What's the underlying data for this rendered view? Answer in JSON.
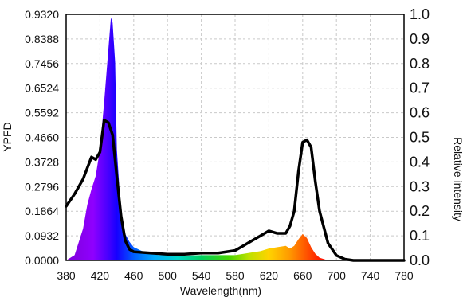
{
  "chart_data": {
    "type": "area",
    "xlabel": "Wavelength(nm)",
    "ylabel_left": "YPFD",
    "ylabel_right": "Relative intensity",
    "xlim": [
      380,
      780
    ],
    "ylim_left": [
      0,
      0.932
    ],
    "ylim_right": [
      0,
      1.0
    ],
    "grid": true,
    "x_ticks": [
      "380",
      "420",
      "460",
      "500",
      "540",
      "580",
      "620",
      "660",
      "700",
      "740",
      "780"
    ],
    "y_left_ticks": [
      "0.0000",
      "0.0932",
      "0.1864",
      "0.2796",
      "0.3728",
      "0.4660",
      "0.5592",
      "0.6524",
      "0.7456",
      "0.8388",
      "0.9320"
    ],
    "y_right_ticks": [
      "0.0",
      "0.1",
      "0.2",
      "0.3",
      "0.4",
      "0.5",
      "0.6",
      "0.7",
      "0.8",
      "0.9",
      "1.0"
    ],
    "series": [
      {
        "name": "",
        "axis": "left",
        "style": "filled-spectrum",
        "x": [
          380,
          390,
          400,
          405,
          410,
          415,
          420,
          425,
          430,
          433,
          435,
          438,
          440,
          445,
          450,
          455,
          460,
          470,
          480,
          490,
          500,
          520,
          540,
          560,
          580,
          590,
          600,
          610,
          620,
          630,
          640,
          645,
          650,
          655,
          660,
          665,
          670,
          675,
          680,
          690,
          700,
          720,
          740,
          760,
          780
        ],
        "y": [
          0.0,
          0.02,
          0.12,
          0.21,
          0.27,
          0.32,
          0.42,
          0.6,
          0.8,
          0.92,
          0.9,
          0.75,
          0.42,
          0.18,
          0.1,
          0.07,
          0.05,
          0.035,
          0.025,
          0.02,
          0.02,
          0.018,
          0.02,
          0.02,
          0.02,
          0.025,
          0.03,
          0.035,
          0.045,
          0.05,
          0.055,
          0.045,
          0.055,
          0.08,
          0.1,
          0.085,
          0.05,
          0.025,
          0.01,
          0.0,
          0.0,
          0.0,
          0.0,
          0.0,
          0.0
        ]
      },
      {
        "name": "",
        "axis": "right",
        "style": "black-line",
        "x": [
          380,
          390,
          400,
          410,
          415,
          420,
          425,
          430,
          435,
          440,
          445,
          450,
          455,
          460,
          480,
          500,
          520,
          540,
          560,
          580,
          590,
          600,
          610,
          620,
          630,
          640,
          645,
          650,
          655,
          660,
          665,
          670,
          675,
          680,
          690,
          700,
          710,
          720,
          740,
          760,
          780
        ],
        "y": [
          0.22,
          0.27,
          0.33,
          0.42,
          0.41,
          0.44,
          0.57,
          0.56,
          0.51,
          0.34,
          0.18,
          0.08,
          0.045,
          0.035,
          0.03,
          0.025,
          0.025,
          0.03,
          0.03,
          0.04,
          0.06,
          0.08,
          0.1,
          0.12,
          0.11,
          0.11,
          0.14,
          0.2,
          0.36,
          0.48,
          0.49,
          0.46,
          0.32,
          0.2,
          0.07,
          0.02,
          0.005,
          0.0,
          0.0,
          0.0,
          0.0
        ]
      }
    ]
  }
}
